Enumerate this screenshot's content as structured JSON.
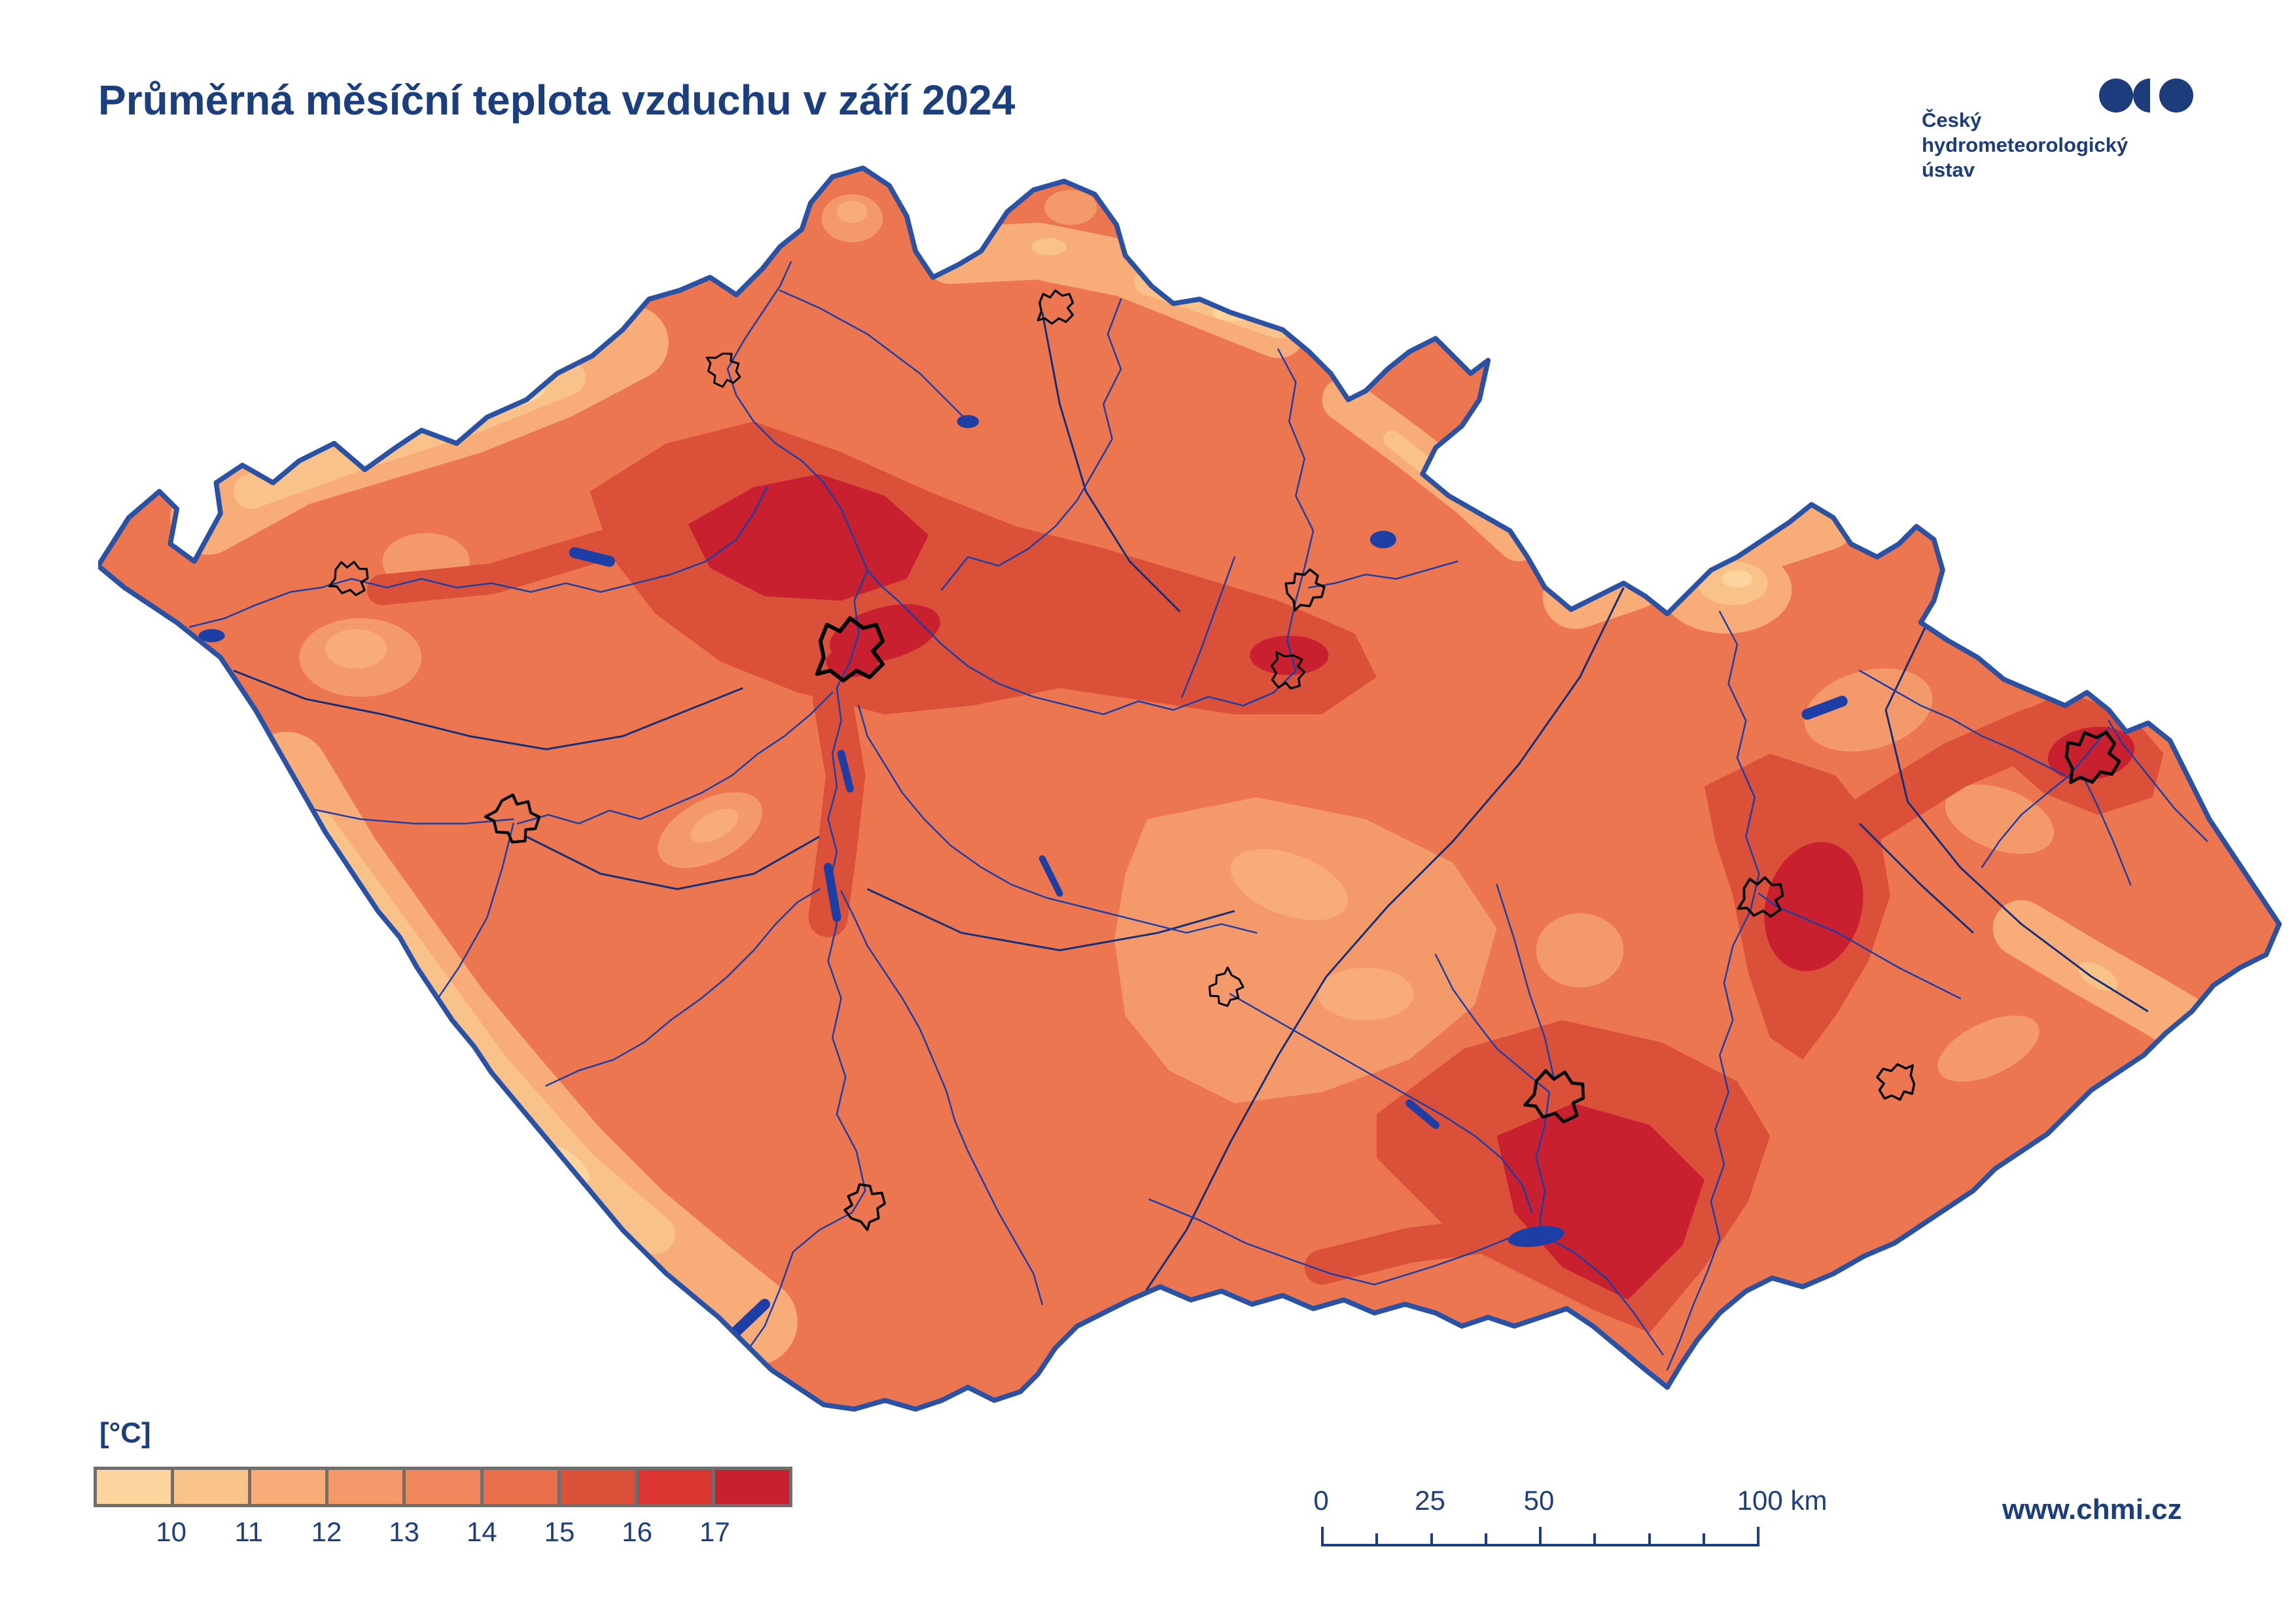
{
  "title": "Průměrná měsíční teplota vzduchu v září 2024",
  "logo": {
    "name_lines": [
      "Český",
      "hydrometeorologický",
      "ústav"
    ],
    "color": "#1D3C7C"
  },
  "footer": {
    "website": "www.chmi.cz"
  },
  "legend": {
    "unit": "[°C]",
    "tick_labels": [
      "10",
      "11",
      "12",
      "13",
      "14",
      "15",
      "16",
      "17"
    ],
    "swatch_colors": [
      "#FBD49E",
      "#FAC28B",
      "#F8AC78",
      "#F49A6A",
      "#F0875C",
      "#E96F4B",
      "#DB5038",
      "#DB3632",
      "#C92030"
    ],
    "frame_color": "#6E6E6E"
  },
  "scalebar": {
    "labels": [
      "0",
      "25",
      "50",
      "100 km"
    ],
    "label_km": [
      0,
      25,
      50,
      100
    ],
    "total_km": 100,
    "tick_interval_km": 12.5,
    "major_ticks_km": [
      0,
      50,
      100
    ],
    "color": "#1C3F7F"
  },
  "map": {
    "subject": "Average monthly air temperature, Czech Republic, September 2024",
    "unit": "°C",
    "value_min": 10,
    "value_max": 17,
    "border_color": "#2B51A2",
    "river_color": "#1D3EA5",
    "basin_line_color": "#14307A",
    "city_outline_color": "#000000",
    "water_fill_color": "#1D3EA5"
  },
  "colors": {
    "title_text": "#1B3E7E",
    "tick_text": "#1E3E7E",
    "background": "#FFFFFF"
  }
}
